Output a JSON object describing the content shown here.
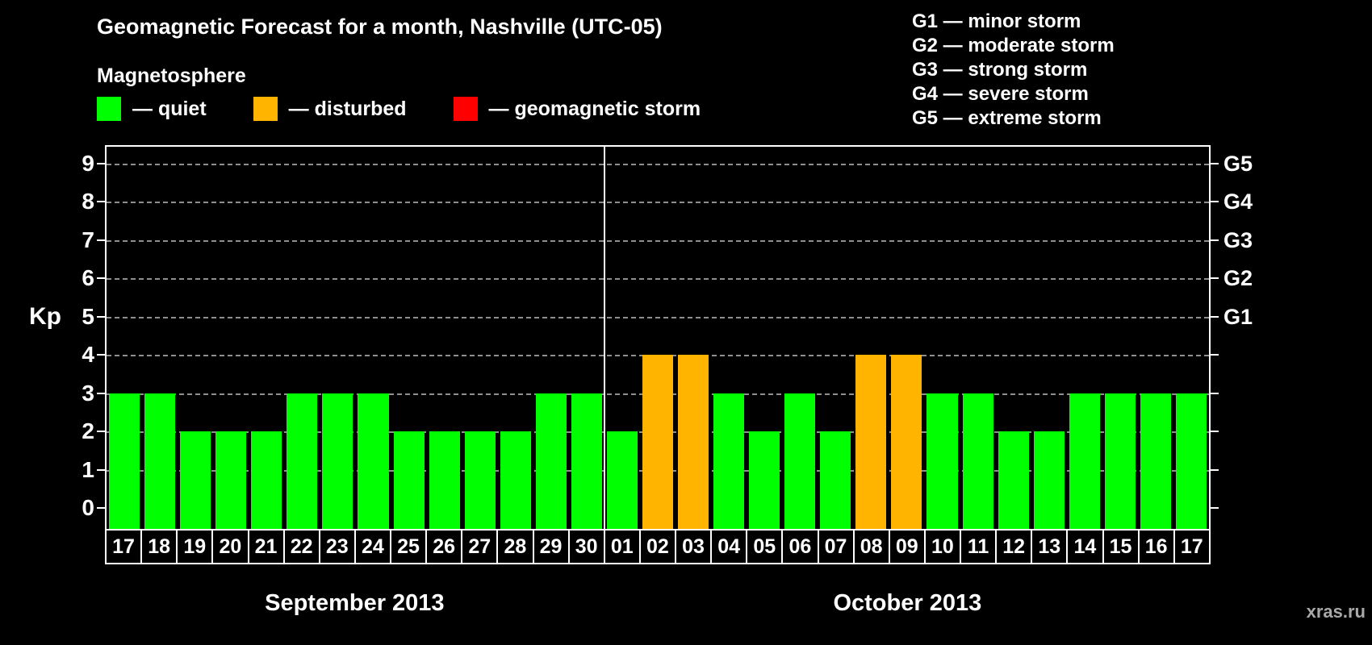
{
  "title": "Geomagnetic Forecast for a month, Nashville (UTC-05)",
  "legend": {
    "heading": "Magnetosphere",
    "items": [
      {
        "label": "— quiet",
        "status": "quiet",
        "color": "#00ff00"
      },
      {
        "label": "— disturbed",
        "status": "disturbed",
        "color": "#ffb400"
      },
      {
        "label": "— geomagnetic storm",
        "status": "storm",
        "color": "#ff0000"
      }
    ]
  },
  "storm_scale": {
    "lines": [
      "G1 — minor storm",
      "G2 — moderate storm",
      "G3 — strong storm",
      "G4 — severe storm",
      "G5 — extreme storm"
    ]
  },
  "watermark": "xras.ru",
  "chart_data": {
    "type": "bar",
    "title": "Geomagnetic Forecast for a month, Nashville (UTC-05)",
    "ylabel": "Kp",
    "ylim": [
      0,
      9.4
    ],
    "y_ticks": [
      0,
      1,
      2,
      3,
      4,
      5,
      6,
      7,
      8,
      9
    ],
    "grid": "dashed horizontal gridlines at Kp 1-9",
    "legend_position": "top-left",
    "status_colors": {
      "quiet": "#00ff00",
      "disturbed": "#ffb400",
      "storm": "#ff0000"
    },
    "right_axis": [
      {
        "label": "G1",
        "kp": 5
      },
      {
        "label": "G2",
        "kp": 6
      },
      {
        "label": "G3",
        "kp": 7
      },
      {
        "label": "G4",
        "kp": 8
      },
      {
        "label": "G5",
        "kp": 9
      }
    ],
    "months": [
      {
        "label": "September 2013",
        "bars": [
          {
            "day": "17",
            "kp": 3,
            "status": "quiet"
          },
          {
            "day": "18",
            "kp": 3,
            "status": "quiet"
          },
          {
            "day": "19",
            "kp": 2,
            "status": "quiet"
          },
          {
            "day": "20",
            "kp": 2,
            "status": "quiet"
          },
          {
            "day": "21",
            "kp": 2,
            "status": "quiet"
          },
          {
            "day": "22",
            "kp": 3,
            "status": "quiet"
          },
          {
            "day": "23",
            "kp": 3,
            "status": "quiet"
          },
          {
            "day": "24",
            "kp": 3,
            "status": "quiet"
          },
          {
            "day": "25",
            "kp": 2,
            "status": "quiet"
          },
          {
            "day": "26",
            "kp": 2,
            "status": "quiet"
          },
          {
            "day": "27",
            "kp": 2,
            "status": "quiet"
          },
          {
            "day": "28",
            "kp": 2,
            "status": "quiet"
          },
          {
            "day": "29",
            "kp": 3,
            "status": "quiet"
          },
          {
            "day": "30",
            "kp": 3,
            "status": "quiet"
          }
        ]
      },
      {
        "label": "October 2013",
        "bars": [
          {
            "day": "01",
            "kp": 2,
            "status": "quiet"
          },
          {
            "day": "02",
            "kp": 4,
            "status": "disturbed"
          },
          {
            "day": "03",
            "kp": 4,
            "status": "disturbed"
          },
          {
            "day": "04",
            "kp": 3,
            "status": "quiet"
          },
          {
            "day": "05",
            "kp": 2,
            "status": "quiet"
          },
          {
            "day": "06",
            "kp": 3,
            "status": "quiet"
          },
          {
            "day": "07",
            "kp": 2,
            "status": "quiet"
          },
          {
            "day": "08",
            "kp": 4,
            "status": "disturbed"
          },
          {
            "day": "09",
            "kp": 4,
            "status": "disturbed"
          },
          {
            "day": "10",
            "kp": 3,
            "status": "quiet"
          },
          {
            "day": "11",
            "kp": 3,
            "status": "quiet"
          },
          {
            "day": "12",
            "kp": 2,
            "status": "quiet"
          },
          {
            "day": "13",
            "kp": 2,
            "status": "quiet"
          },
          {
            "day": "14",
            "kp": 3,
            "status": "quiet"
          },
          {
            "day": "15",
            "kp": 3,
            "status": "quiet"
          },
          {
            "day": "16",
            "kp": 3,
            "status": "quiet"
          },
          {
            "day": "17",
            "kp": 3,
            "status": "quiet"
          }
        ]
      }
    ]
  }
}
